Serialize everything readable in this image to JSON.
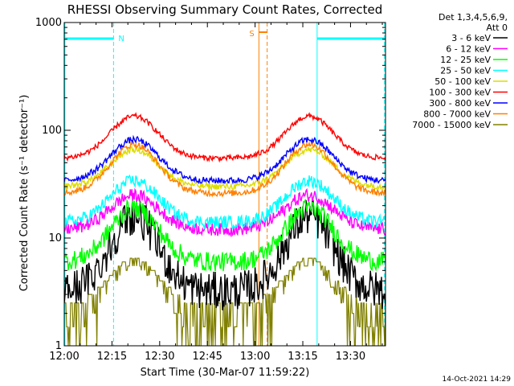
{
  "chart_data": {
    "type": "line",
    "title": "RHESSI Observing Summary Count Rates, Corrected",
    "xlabel": "Start Time (30-Mar-07 11:59:22)",
    "ylabel": "Corrected Count Rate (s⁻¹ detector⁻¹)",
    "yscale": "log",
    "ylim": [
      1,
      1000
    ],
    "xlim_minutes": [
      0,
      101
    ],
    "x_ticks": [
      {
        "label": "12:00",
        "min": 0
      },
      {
        "label": "12:15",
        "min": 15
      },
      {
        "label": "12:30",
        "min": 30
      },
      {
        "label": "12:45",
        "min": 45
      },
      {
        "label": "13:00",
        "min": 60
      },
      {
        "label": "13:15",
        "min": 75
      },
      {
        "label": "13:30",
        "min": 90
      }
    ],
    "y_ticks": [
      {
        "label": "1",
        "v": 1
      },
      {
        "label": "10",
        "v": 10
      },
      {
        "label": "100",
        "v": 100
      },
      {
        "label": "1000",
        "v": 1000
      }
    ],
    "legend_header": [
      "Det 1,3,4,5,6,9,",
      "Att 0"
    ],
    "legend_position": "top-right outside",
    "series": [
      {
        "name": "3 - 6 keV",
        "color": "#000000",
        "base": 3.2,
        "peak": 16,
        "noise": 0.18,
        "staircase": false
      },
      {
        "name": "6 - 12 keV",
        "color": "#ff00ff",
        "base": 12,
        "peak": 25,
        "noise": 0.06,
        "staircase": false
      },
      {
        "name": "12 - 25 keV",
        "color": "#00ff00",
        "base": 6,
        "peak": 19,
        "noise": 0.09,
        "staircase": false
      },
      {
        "name": "25 - 50 keV",
        "color": "#00ffff",
        "base": 14,
        "peak": 34,
        "noise": 0.06,
        "staircase": false
      },
      {
        "name": "50 - 100 keV",
        "color": "#dddd00",
        "base": 30,
        "peak": 66,
        "noise": 0.03,
        "staircase": false
      },
      {
        "name": "100 - 300 keV",
        "color": "#ff0000",
        "base": 55,
        "peak": 135,
        "noise": 0.025,
        "staircase": false
      },
      {
        "name": "300 - 800 keV",
        "color": "#0000ff",
        "base": 34,
        "peak": 82,
        "noise": 0.03,
        "staircase": false
      },
      {
        "name": "800 - 7000 keV",
        "color": "#ff8000",
        "base": 26,
        "peak": 74,
        "noise": 0.03,
        "staircase": false
      },
      {
        "name": "7000 - 15000 keV",
        "color": "#808000",
        "base": 2.4,
        "peak": 6.5,
        "noise": 0.1,
        "staircase": true
      }
    ],
    "peaks_min": [
      22,
      77
    ],
    "annotations": [
      {
        "text": "N",
        "color": "#00ffff"
      },
      {
        "text": "S",
        "color": "#ff8000"
      }
    ],
    "timestamp": "14-Oct-2021 14:29"
  }
}
